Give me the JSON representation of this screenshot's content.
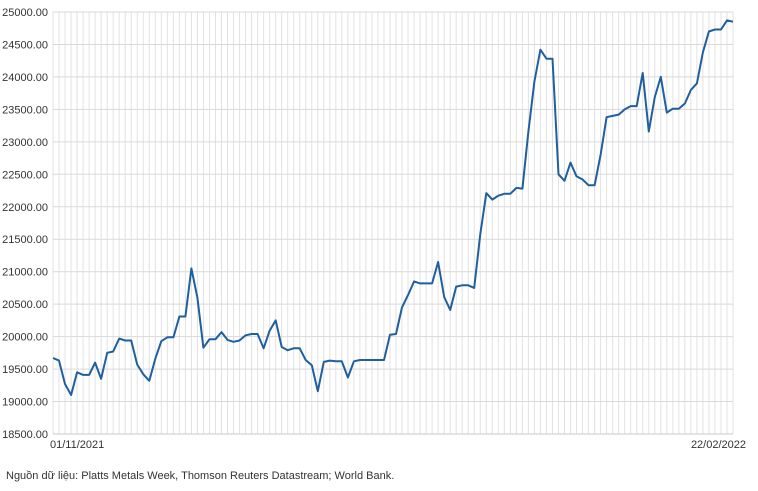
{
  "chart_data": {
    "type": "line",
    "x_start_label": "01/11/2021",
    "x_end_label": "22/02/2022",
    "yticks": [
      18500,
      19000,
      19500,
      20000,
      20500,
      21000,
      21500,
      22000,
      22500,
      23000,
      23500,
      24000,
      24500,
      25000
    ],
    "ylim": [
      18500,
      25000
    ],
    "grid": true,
    "line_color": "#1f5f9e",
    "series": [
      {
        "values": [
          19670,
          19630,
          19270,
          19100,
          19450,
          19410,
          19410,
          19600,
          19350,
          19750,
          19770,
          19970,
          19940,
          19940,
          19570,
          19420,
          19320,
          19660,
          19930,
          19990,
          19990,
          20310,
          20310,
          21050,
          20600,
          19830,
          19960,
          19960,
          20070,
          19950,
          19920,
          19940,
          20020,
          20040,
          20040,
          19820,
          20090,
          20250,
          19840,
          19790,
          19820,
          19820,
          19640,
          19560,
          19160,
          19610,
          19630,
          19620,
          19620,
          19370,
          19620,
          19640,
          19640,
          19640,
          19640,
          19640,
          20030,
          20040,
          20450,
          20640,
          20850,
          20820,
          20820,
          20820,
          21150,
          20610,
          20410,
          20770,
          20790,
          20790,
          20750,
          21580,
          22210,
          22110,
          22170,
          22200,
          22200,
          22290,
          22280,
          23160,
          23930,
          24420,
          24280,
          24280,
          22500,
          22400,
          22680,
          22470,
          22420,
          22330,
          22330,
          22800,
          23380,
          23400,
          23420,
          23500,
          23550,
          23550,
          24060,
          23160,
          23690,
          24000,
          23450,
          23510,
          23510,
          23590,
          23800,
          23900,
          24380,
          24700,
          24730,
          24730,
          24870,
          24850
        ]
      }
    ]
  },
  "footer": {
    "source_text": "Nguồn dữ liệu: Platts Metals Week, Thomson Reuters Datastream; World Bank."
  }
}
